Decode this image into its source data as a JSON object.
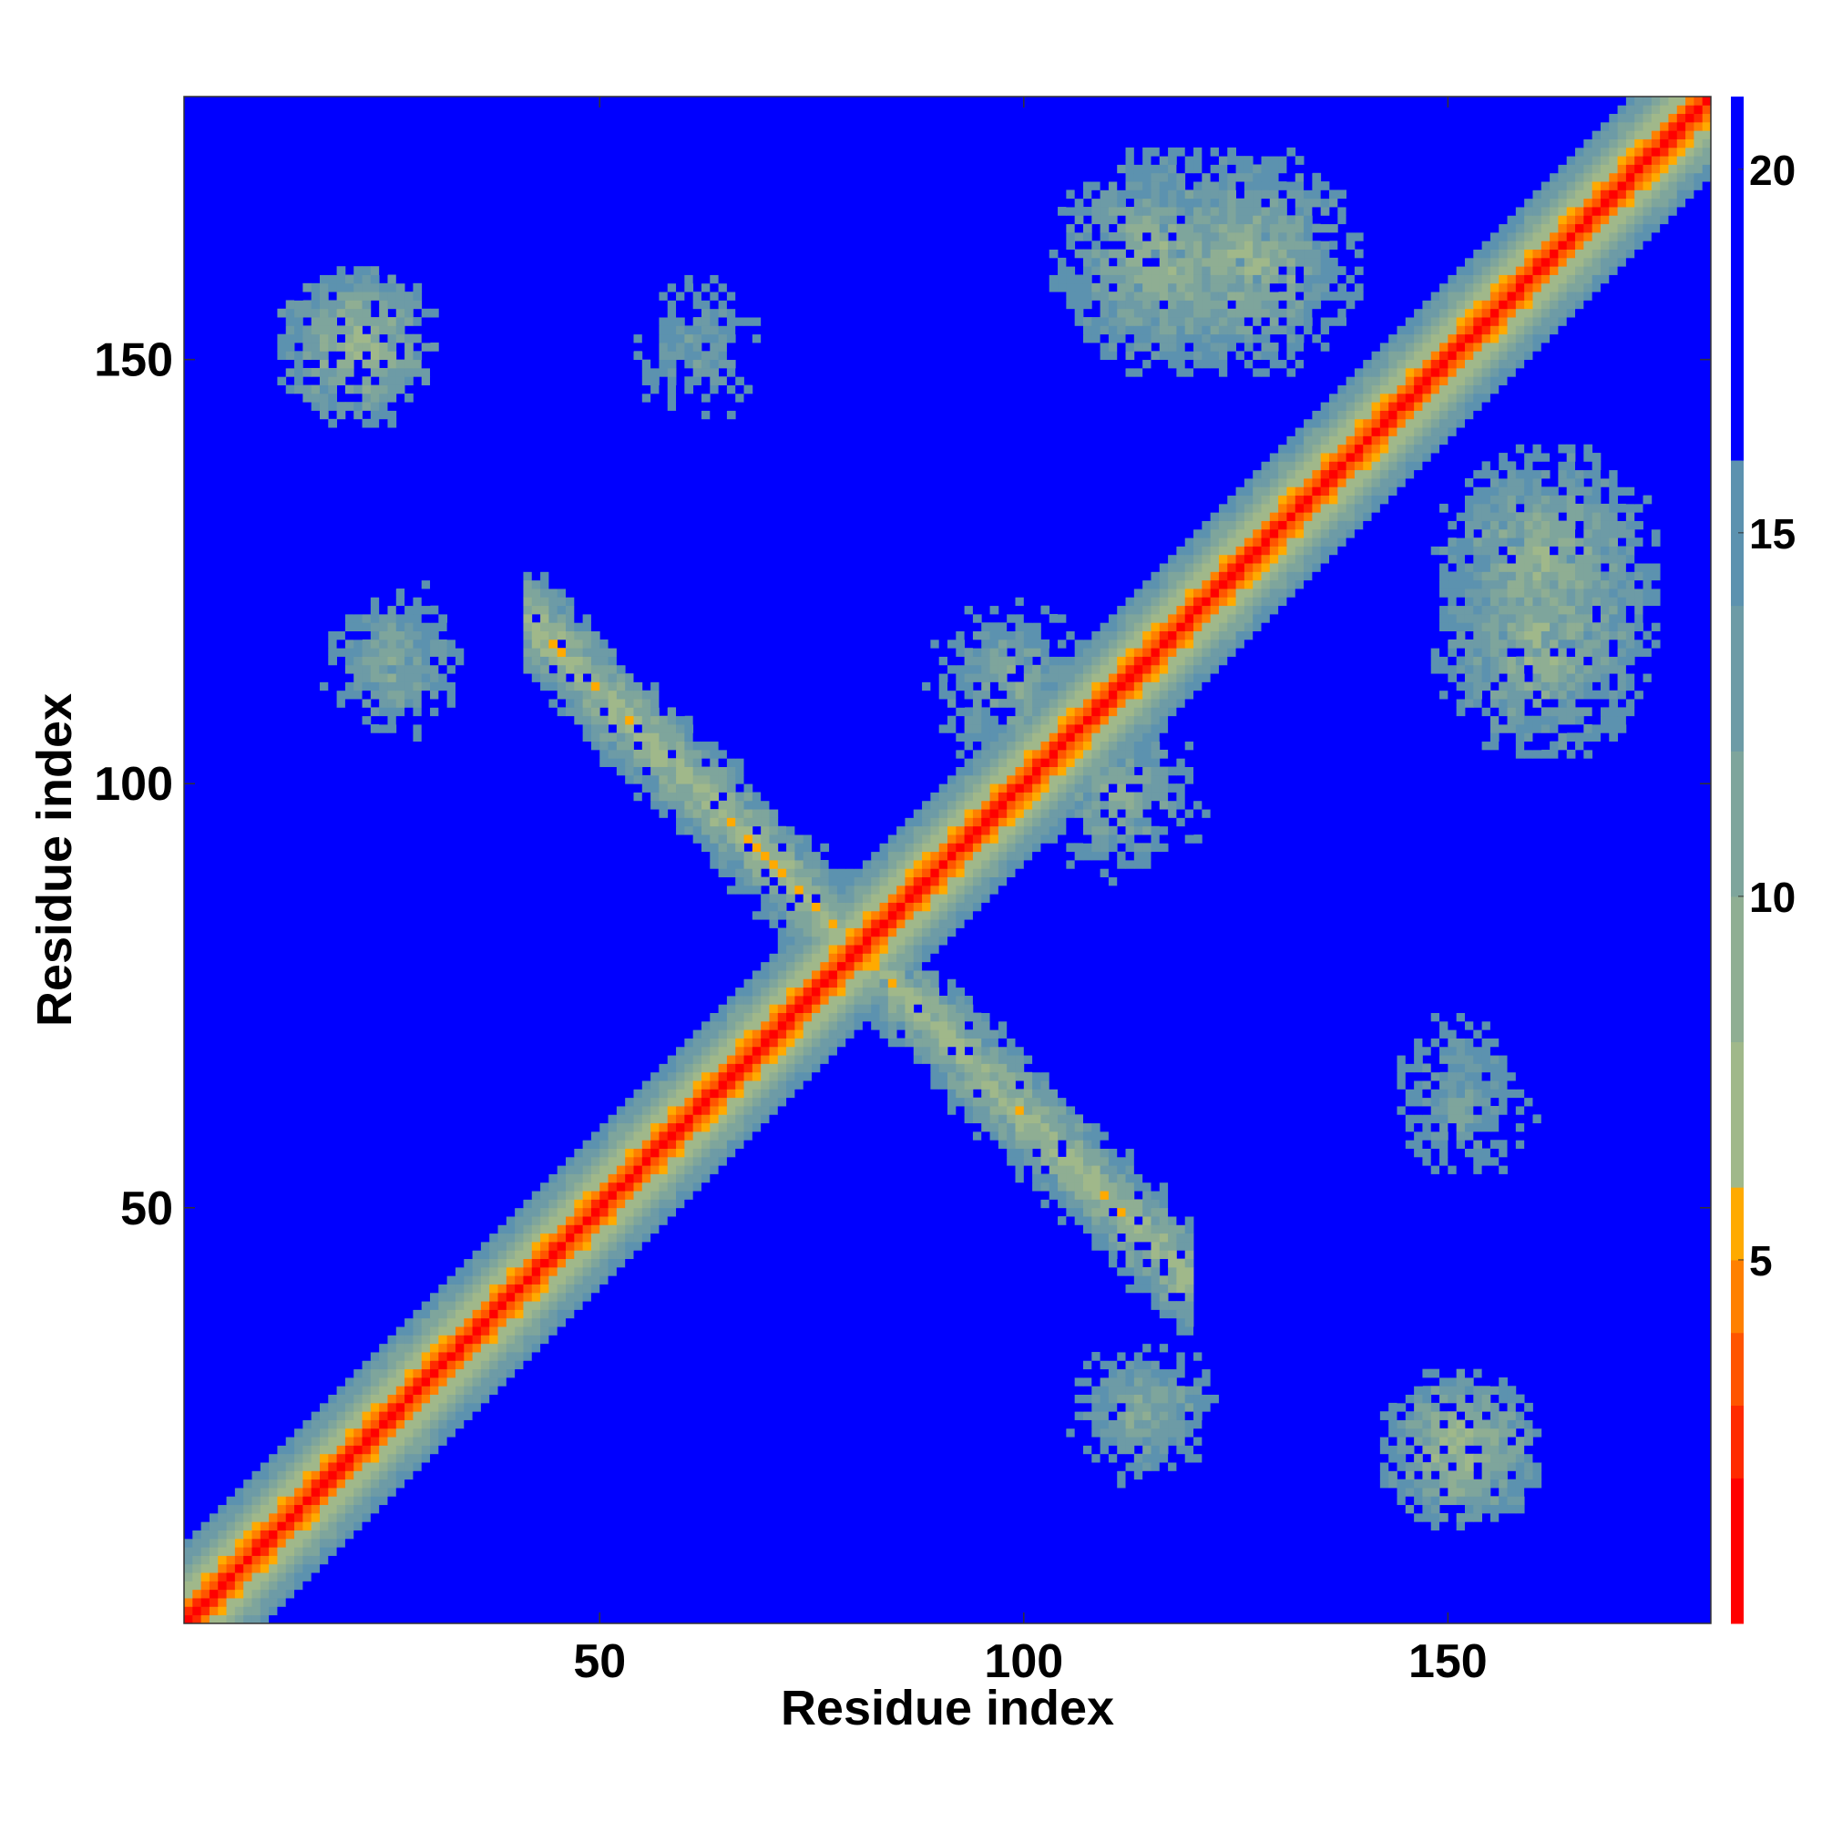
{
  "chart_data": {
    "type": "heatmap",
    "title": "",
    "xlabel": "Residue index",
    "ylabel": "Residue index",
    "xlim": [
      1,
      181
    ],
    "ylim": [
      1,
      181
    ],
    "xticks": [
      50,
      100,
      150
    ],
    "yticks": [
      50,
      100,
      150
    ],
    "n_residues": 180,
    "background_color": "#0000ff",
    "description_regions": [
      {
        "kind": "diagonal",
        "intensity_close": 1,
        "band_half_width": 8
      },
      {
        "kind": "antidiagonal_strand_pair",
        "x_range": [
          40,
          80
        ],
        "y_range": [
          78,
          118
        ],
        "min_value": 5
      },
      {
        "kind": "antidiagonal_strand_pair",
        "x_range": [
          78,
          118
        ],
        "y_range": [
          40,
          80
        ],
        "min_value": 5
      },
      {
        "kind": "blob",
        "center": [
          160,
          115
        ],
        "radius": 14,
        "min_value": 6
      },
      {
        "kind": "blob",
        "center": [
          115,
          160
        ],
        "radius": 14,
        "min_value": 6
      },
      {
        "kind": "blob",
        "center": [
          125,
          160
        ],
        "radius": 14,
        "min_value": 6
      },
      {
        "kind": "blob",
        "center": [
          160,
          125
        ],
        "radius": 14,
        "min_value": 6
      },
      {
        "kind": "blob",
        "center": [
          150,
          60
        ],
        "radius": 14,
        "min_value": 10
      },
      {
        "kind": "blob",
        "center": [
          60,
          150
        ],
        "radius": 14,
        "min_value": 10
      },
      {
        "kind": "blob",
        "center": [
          150,
          20
        ],
        "radius": 10,
        "min_value": 5
      },
      {
        "kind": "blob",
        "center": [
          20,
          150
        ],
        "radius": 10,
        "min_value": 5
      },
      {
        "kind": "blob",
        "center": [
          112,
          24
        ],
        "radius": 10,
        "min_value": 8
      },
      {
        "kind": "blob",
        "center": [
          24,
          112
        ],
        "radius": 10,
        "min_value": 8
      },
      {
        "kind": "blob",
        "center": [
          25,
          115
        ],
        "radius": 10,
        "min_value": 9
      },
      {
        "kind": "blob",
        "center": [
          115,
          25
        ],
        "radius": 10,
        "min_value": 9
      },
      {
        "kind": "blob",
        "center": [
          150,
          65
        ],
        "radius": 14,
        "min_value": 11
      },
      {
        "kind": "blob",
        "center": [
          97,
          110
        ],
        "radius": 12,
        "min_value": 8
      },
      {
        "kind": "blob",
        "center": [
          110,
          97
        ],
        "radius": 12,
        "min_value": 8
      }
    ],
    "colorbar": {
      "ticks": [
        5,
        10,
        15,
        20
      ],
      "range": [
        0,
        21
      ],
      "colors": [
        "#ff0000",
        "#ff2a00",
        "#ff5500",
        "#ff8000",
        "#ffaa00",
        "#a0b88a",
        "#8fae93",
        "#7ea59c",
        "#6d9ba6",
        "#5c92af",
        "#0000ff"
      ],
      "boundaries": [
        0,
        2,
        3,
        4,
        5,
        6,
        8,
        10,
        12,
        14,
        16,
        20,
        21
      ]
    }
  }
}
